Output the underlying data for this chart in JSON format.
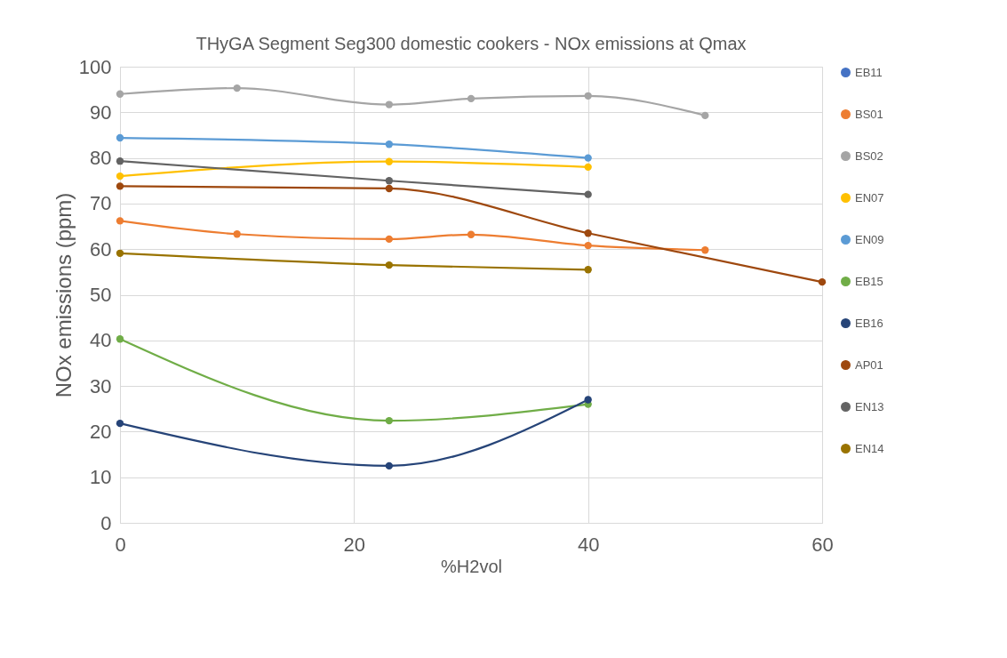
{
  "chart_data": {
    "type": "line",
    "title": "THyGA Segment Seg300 domestic cookers - NOx emissions at Qmax",
    "xlabel": "%H2vol",
    "ylabel": "NOx emissions (ppm)",
    "xlim": [
      0,
      60
    ],
    "xticks": [
      0,
      20,
      40,
      60
    ],
    "ylim": [
      0,
      100
    ],
    "yticks": [
      0,
      10,
      20,
      30,
      40,
      50,
      60,
      70,
      80,
      90,
      100
    ],
    "grid": true,
    "legend": "right",
    "marker": "circle",
    "line_style": "solid",
    "series": [
      {
        "name": "EB11",
        "color": "#4472c4"
      },
      {
        "name": "BS01",
        "color": "#ed7d31",
        "x": [
          0,
          10,
          23,
          30,
          40,
          50
        ],
        "values": [
          66.2,
          63.3,
          62.2,
          63.2,
          60.8,
          59.8
        ]
      },
      {
        "name": "BS02",
        "color": "#a5a5a5",
        "x": [
          0,
          10,
          23,
          30,
          40,
          50
        ],
        "values": [
          94.0,
          95.3,
          91.7,
          93.0,
          93.6,
          89.3
        ]
      },
      {
        "name": "EN07",
        "color": "#ffc000",
        "x": [
          0,
          23,
          40
        ],
        "values": [
          76.0,
          79.2,
          78.0
        ]
      },
      {
        "name": "EN09",
        "color": "#5b9bd5",
        "x": [
          0,
          23,
          40
        ],
        "values": [
          84.4,
          83.0,
          80.0
        ]
      },
      {
        "name": "EB15",
        "color": "#70ad47",
        "x": [
          0,
          23,
          40
        ],
        "values": [
          40.3,
          22.4,
          26.0
        ]
      },
      {
        "name": "EB16",
        "color": "#264478",
        "x": [
          0,
          23,
          40
        ],
        "values": [
          21.8,
          12.5,
          27.0
        ]
      },
      {
        "name": "AP01",
        "color": "#9e480e",
        "x": [
          0,
          23,
          40,
          60
        ],
        "values": [
          73.8,
          73.3,
          63.5,
          52.8
        ]
      },
      {
        "name": "EN13",
        "color": "#636363",
        "x": [
          0,
          23,
          40
        ],
        "values": [
          79.3,
          75.0,
          72.0
        ]
      },
      {
        "name": "EN14",
        "color": "#997300",
        "x": [
          0,
          23,
          40
        ],
        "values": [
          59.1,
          56.5,
          55.5
        ]
      }
    ]
  }
}
